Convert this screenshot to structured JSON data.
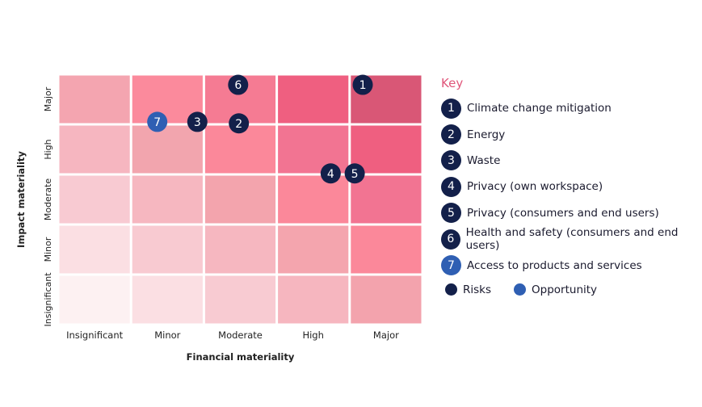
{
  "chart_data": {
    "type": "scatter",
    "title": "",
    "xlabel": "Financial materiality",
    "ylabel": "Impact materiality",
    "x_categories": [
      "Insignificant",
      "Minor",
      "Moderate",
      "High",
      "Major"
    ],
    "y_categories": [
      "Insignificant",
      "Minor",
      "Moderate",
      "High",
      "Major"
    ],
    "xlim": [
      0,
      5
    ],
    "ylim": [
      0,
      5
    ],
    "cell_colors_top_to_bottom": [
      [
        "#f4a5b0",
        "#fb8a9c",
        "#f57b93",
        "#ef5f80",
        "#d95776"
      ],
      [
        "#f6b6c0",
        "#f2a5ae",
        "#fb889a",
        "#f27492",
        "#ef5f80"
      ],
      [
        "#f8cad2",
        "#f6b7c0",
        "#f3a4ad",
        "#fb889a",
        "#f27492"
      ],
      [
        "#fbdfe3",
        "#f8cad1",
        "#f6b7c0",
        "#f4a5ae",
        "#fb889a"
      ],
      [
        "#fdf1f2",
        "#fbdfe3",
        "#f8cbd2",
        "#f6b6bf",
        "#f3a3ad"
      ]
    ],
    "points": [
      {
        "id": "1",
        "label": "Climate change mitigation",
        "type": "risk",
        "x": 4.18,
        "y": 4.79
      },
      {
        "id": "2",
        "label": "Energy",
        "type": "risk",
        "x": 2.48,
        "y": 4.02
      },
      {
        "id": "3",
        "label": "Waste",
        "type": "risk",
        "x": 1.91,
        "y": 4.05
      },
      {
        "id": "4",
        "label": "Privacy (own workspace)",
        "type": "risk",
        "x": 3.74,
        "y": 3.02
      },
      {
        "id": "5",
        "label": "Privacy (consumers and end users)",
        "type": "risk",
        "x": 4.07,
        "y": 3.02
      },
      {
        "id": "6",
        "label": "Health and safety (consumers and end users)",
        "type": "risk",
        "x": 2.47,
        "y": 4.79
      },
      {
        "id": "7",
        "label": "Access to products and services",
        "type": "opportunity",
        "x": 1.36,
        "y": 4.05
      }
    ],
    "legend": {
      "title": "Key",
      "placement": "right",
      "types": [
        {
          "name": "Risks",
          "color": "#13204a"
        },
        {
          "name": "Opportunity",
          "color": "#2f5fb3"
        }
      ]
    }
  }
}
